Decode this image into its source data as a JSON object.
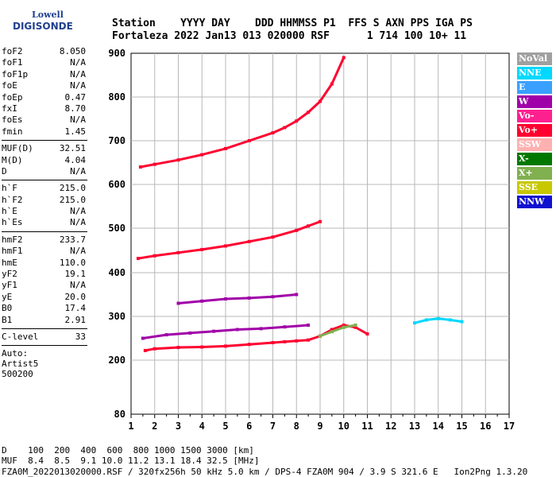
{
  "logo": {
    "line1": "Lowell",
    "line2": "DIGISONDE"
  },
  "header": {
    "labels": "Station    YYYY DAY    DDD HHMMSS P1  FFS S AXN PPS IGA PS",
    "values": "Fortaleza 2022 Jan13 013 020000 RSF      1 714 100 10+ 11"
  },
  "params": [
    [
      {
        "name": "foF2",
        "value": "8.050"
      },
      {
        "name": "foF1",
        "value": "N/A"
      },
      {
        "name": "foF1p",
        "value": "N/A"
      },
      {
        "name": "foE",
        "value": "N/A"
      },
      {
        "name": "foEp",
        "value": "0.47"
      },
      {
        "name": "fxI",
        "value": "8.70"
      },
      {
        "name": "foEs",
        "value": "N/A"
      },
      {
        "name": "fmin",
        "value": "1.45"
      }
    ],
    [
      {
        "name": "MUF(D)",
        "value": "32.51"
      },
      {
        "name": "M(D)",
        "value": "4.04"
      },
      {
        "name": "D",
        "value": "N/A"
      }
    ],
    [
      {
        "name": "h`F",
        "value": "215.0"
      },
      {
        "name": "h`F2",
        "value": "215.0"
      },
      {
        "name": "h`E",
        "value": "N/A"
      },
      {
        "name": "h`Es",
        "value": "N/A"
      }
    ],
    [
      {
        "name": "hmF2",
        "value": "233.7"
      },
      {
        "name": "hmF1",
        "value": "N/A"
      },
      {
        "name": "hmE",
        "value": "110.0"
      },
      {
        "name": "yF2",
        "value": "19.1"
      },
      {
        "name": "yF1",
        "value": "N/A"
      },
      {
        "name": "yE",
        "value": "20.0"
      },
      {
        "name": "B0",
        "value": "17.4"
      },
      {
        "name": "B1",
        "value": "2.91"
      }
    ],
    [
      {
        "name": "C-level",
        "value": "33"
      }
    ]
  ],
  "autoscale": {
    "line1": "Auto:",
    "line2": "Artist5",
    "line3": "500200"
  },
  "legend": [
    {
      "label": "NoVal",
      "color": "#a0a0a0"
    },
    {
      "label": "NNE",
      "color": "#00d8ff"
    },
    {
      "label": "E",
      "color": "#3aa0ff"
    },
    {
      "label": "W",
      "color": "#a000a8"
    },
    {
      "label": "Vo-",
      "color": "#ff2090"
    },
    {
      "label": "Vo+",
      "color": "#ff0030"
    },
    {
      "label": "SSW",
      "color": "#ffb0b0"
    },
    {
      "label": "X-",
      "color": "#007800"
    },
    {
      "label": "X+",
      "color": "#80b050"
    },
    {
      "label": "SSE",
      "color": "#c8c800"
    },
    {
      "label": "NNW",
      "color": "#1010d0"
    }
  ],
  "footer": {
    "line1": "D    100  200  400  600  800 1000 1500 3000 [km]",
    "line2": "MUF  8.4  8.5  9.1 10.0 11.2 13.1 18.4 32.5 [MHz]",
    "line3": "FZA0M_2022013020000.RSF / 320fx256h 50 kHz 5.0 km / DPS-4 FZA0M 904 / 3.9 S 321.6 E   Ion2Png 1.3.20"
  },
  "chart_data": {
    "type": "scatter",
    "x_ticks": [
      "1",
      "2",
      "3",
      "4",
      "5",
      "6",
      "7",
      "8",
      "9",
      "10",
      "11",
      "12",
      "13",
      "14",
      "15",
      "16",
      "17"
    ],
    "y_ticks": [
      "80",
      "200",
      "300",
      "400",
      "500",
      "600",
      "700",
      "800",
      "900"
    ],
    "xlim": [
      1,
      17
    ],
    "ylim": [
      80,
      900
    ],
    "grid": true,
    "series": [
      {
        "name": "Vo+",
        "color": "#ff0030",
        "x": [
          1.6,
          2.0,
          3.0,
          4.0,
          5.0,
          6.0,
          7.0,
          7.5,
          8.0,
          8.5,
          9.0,
          9.5,
          10.0,
          10.5,
          11.0
        ],
        "y": [
          222,
          226,
          229,
          230,
          232,
          236,
          240,
          242,
          244,
          246,
          255,
          270,
          280,
          275,
          260
        ]
      },
      {
        "name": "Vo+",
        "color": "#ff0030",
        "x": [
          1.3,
          2.0,
          3.0,
          4.0,
          5.0,
          6.0,
          7.0,
          8.0,
          8.5,
          9.0
        ],
        "y": [
          432,
          438,
          445,
          452,
          460,
          470,
          480,
          495,
          505,
          515
        ]
      },
      {
        "name": "Vo+",
        "color": "#ff0030",
        "x": [
          1.4,
          2.0,
          3.0,
          4.0,
          5.0,
          6.0,
          7.0,
          7.5,
          8.0,
          8.5,
          9.0,
          9.5,
          10.0
        ],
        "y": [
          640,
          646,
          656,
          668,
          682,
          700,
          718,
          730,
          745,
          765,
          790,
          830,
          890
        ]
      },
      {
        "name": "W",
        "color": "#a000a8",
        "x": [
          1.5,
          2.5,
          3.5,
          4.5,
          5.5,
          6.5,
          7.5,
          8.5
        ],
        "y": [
          250,
          258,
          262,
          266,
          270,
          272,
          276,
          280
        ]
      },
      {
        "name": "W",
        "color": "#a000a8",
        "x": [
          3.0,
          4.0,
          5.0,
          6.0,
          7.0,
          8.0
        ],
        "y": [
          330,
          335,
          340,
          342,
          345,
          350
        ]
      },
      {
        "name": "NNE",
        "color": "#00d8ff",
        "x": [
          13.0,
          13.5,
          14.0,
          14.5,
          15.0
        ],
        "y": [
          285,
          292,
          295,
          292,
          288
        ]
      },
      {
        "name": "X+",
        "color": "#80b050",
        "x": [
          9.0,
          9.5,
          10.0,
          10.5
        ],
        "y": [
          255,
          265,
          275,
          280
        ]
      }
    ]
  }
}
